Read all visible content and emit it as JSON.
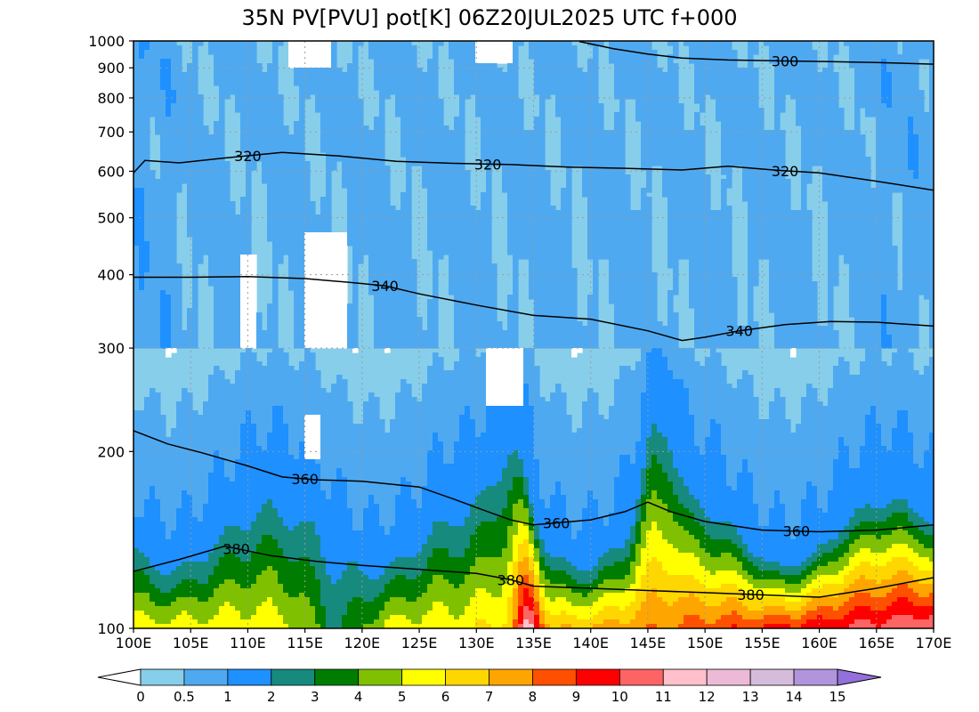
{
  "title": "35N PV[PVU] pot[K] 06Z20JUL2025 UTC f+000",
  "chart_data": {
    "type": "heatmap",
    "title": "35N PV[PVU] pot[K] 06Z20JUL2025 UTC f+000",
    "x_axis": {
      "range": [
        100,
        170
      ],
      "ticks": [
        100,
        105,
        110,
        115,
        120,
        125,
        130,
        135,
        140,
        145,
        150,
        155,
        160,
        165,
        170
      ],
      "tick_labels": [
        "100E",
        "105E",
        "110E",
        "115E",
        "120E",
        "125E",
        "130E",
        "135E",
        "140E",
        "145E",
        "150E",
        "155E",
        "160E",
        "165E",
        "170E"
      ]
    },
    "y_axis": {
      "scale": "log",
      "reversed": true,
      "range": [
        1000,
        100
      ],
      "ticks": [
        100,
        200,
        300,
        400,
        500,
        600,
        700,
        800,
        900,
        1000
      ],
      "tick_labels": [
        "100",
        "200",
        "300",
        "400",
        "500",
        "600",
        "700",
        "800",
        "900",
        "1000"
      ]
    },
    "grid": true,
    "colorbar": {
      "placement": "bottom",
      "levels": [
        0,
        0.5,
        1,
        2,
        3,
        4,
        5,
        6,
        7,
        8,
        9,
        10,
        11,
        12,
        13,
        14,
        15
      ],
      "labels": [
        "0",
        "0.5",
        "1",
        "2",
        "3",
        "4",
        "5",
        "6",
        "7",
        "8",
        "9",
        "10",
        "11",
        "12",
        "13",
        "14",
        "15"
      ],
      "colors": [
        "#87ceeb",
        "#4fa9f0",
        "#1e90ff",
        "#178a7e",
        "#007d00",
        "#7fc000",
        "#ffff00",
        "#ffd700",
        "#ffa500",
        "#ff5000",
        "#ff0000",
        "#ff6464",
        "#ffc0cb",
        "#ecbad6",
        "#d6bcdb",
        "#b294dc"
      ],
      "under_color": "#ffffff",
      "over_color": "#9370db"
    },
    "isentropes": [
      {
        "theta": 380,
        "label": "380",
        "points": [
          [
            100,
            125
          ],
          [
            104,
            131
          ],
          [
            108,
            138
          ],
          [
            112,
            133
          ],
          [
            116,
            130
          ],
          [
            120,
            128
          ],
          [
            125,
            126
          ],
          [
            130,
            124
          ],
          [
            133,
            121
          ],
          [
            135,
            118
          ],
          [
            140,
            117
          ],
          [
            145,
            116
          ],
          [
            150,
            115
          ],
          [
            155,
            114
          ],
          [
            160,
            113
          ],
          [
            165,
            117
          ],
          [
            170,
            122
          ]
        ]
      },
      {
        "theta": 360,
        "label": "360",
        "points": [
          [
            100,
            217
          ],
          [
            103,
            206
          ],
          [
            106,
            199
          ],
          [
            110,
            189
          ],
          [
            113,
            181
          ],
          [
            116,
            179
          ],
          [
            120,
            178
          ],
          [
            125,
            174
          ],
          [
            128,
            166
          ],
          [
            131,
            158
          ],
          [
            133,
            153
          ],
          [
            135,
            150
          ],
          [
            140,
            153
          ],
          [
            143,
            158
          ],
          [
            145,
            164
          ],
          [
            147,
            158
          ],
          [
            150,
            152
          ],
          [
            155,
            147
          ],
          [
            160,
            146
          ],
          [
            165,
            147
          ],
          [
            170,
            150
          ]
        ]
      },
      {
        "theta": 340,
        "label": "340",
        "points": [
          [
            100,
            396
          ],
          [
            105,
            396
          ],
          [
            110,
            397
          ],
          [
            115,
            394
          ],
          [
            119,
            388
          ],
          [
            122,
            383
          ],
          [
            125,
            371
          ],
          [
            130,
            355
          ],
          [
            135,
            341
          ],
          [
            140,
            336
          ],
          [
            145,
            321
          ],
          [
            148,
            309
          ],
          [
            150,
            313
          ],
          [
            153,
            321
          ],
          [
            157,
            329
          ],
          [
            161,
            333
          ],
          [
            165,
            332
          ],
          [
            170,
            327
          ]
        ]
      },
      {
        "theta": 320,
        "label": "320",
        "points": [
          [
            100,
            596
          ],
          [
            101,
            626
          ],
          [
            104,
            620
          ],
          [
            108,
            632
          ],
          [
            113,
            646
          ],
          [
            118,
            637
          ],
          [
            123,
            624
          ],
          [
            128,
            619
          ],
          [
            133,
            616
          ],
          [
            138,
            610
          ],
          [
            143,
            607
          ],
          [
            148,
            603
          ],
          [
            152,
            612
          ],
          [
            156,
            603
          ],
          [
            160,
            596
          ],
          [
            165,
            577
          ],
          [
            170,
            557
          ]
        ]
      },
      {
        "theta": 300,
        "label": "300",
        "points": [
          [
            139,
            998
          ],
          [
            142,
            970
          ],
          [
            145,
            950
          ],
          [
            148,
            935
          ],
          [
            152,
            928
          ],
          [
            156,
            925
          ],
          [
            160,
            923
          ],
          [
            165,
            919
          ],
          [
            170,
            913
          ]
        ]
      }
    ]
  }
}
